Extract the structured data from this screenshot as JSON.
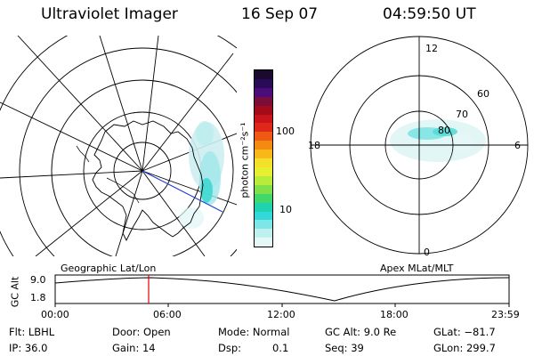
{
  "header": {
    "title": "Ultraviolet Imager",
    "date": "16 Sep 07",
    "time": "04:59:50 UT"
  },
  "colorbar": {
    "unit_label": "photon cm⁻²s⁻¹",
    "tick_100": "100",
    "tick_10": "10",
    "colors_top_to_bottom": [
      "#1a0a2e",
      "#2b0a5a",
      "#4a0d7a",
      "#7a0d3a",
      "#a30a1a",
      "#c8141a",
      "#e0281a",
      "#ee5a14",
      "#f58a10",
      "#f8b81a",
      "#f4e02a",
      "#e6f030",
      "#b8ec3a",
      "#7fe04a",
      "#40d86a",
      "#1fd3b0",
      "#33d9d9",
      "#7ee6e6",
      "#bff0f0",
      "#e6f7f7"
    ]
  },
  "left_panel": {
    "label": "Geographic Lat/Lon"
  },
  "right_panel": {
    "label": "Apex MLat/MLT",
    "mlt_top": "12",
    "mlt_bottom": "0",
    "mlt_left": "18",
    "mlt_right": "6",
    "lat_60": "60",
    "lat_70": "70",
    "lat_80": "80"
  },
  "alt_strip": {
    "axis_label": "GC Alt",
    "y_top": "9.0",
    "y_bottom": "1.8",
    "x_ticks": [
      "00:00",
      "06:00",
      "12:00",
      "18:00",
      "23:59"
    ]
  },
  "footer": {
    "filter": "Flt: LBHL",
    "ip": "IP: 36.0",
    "door": "Door: Open",
    "gain": "Gain: 14",
    "mode": "Mode: Normal",
    "dsp_label": "Dsp:",
    "dsp_value": "0.1",
    "gc_alt": "GC Alt: 9.0 Re",
    "seq": "Seq: 39",
    "glat": "GLat: −81.7",
    "glon": "GLon: 299.7"
  }
}
